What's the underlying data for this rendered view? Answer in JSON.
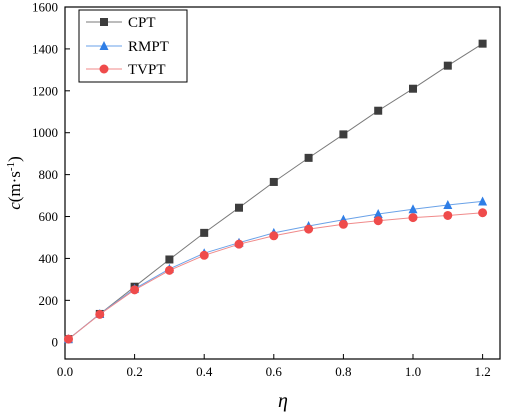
{
  "chart_data": {
    "type": "line",
    "xlabel": "η",
    "ylabel_main": "c",
    "ylabel_unit": "(m·s",
    "ylabel_sup": "-1",
    "ylabel_close": ")",
    "xlim": [
      0.0,
      1.25
    ],
    "ylim": [
      -80,
      1600
    ],
    "xticks": [
      0.0,
      0.2,
      0.4,
      0.6,
      0.8,
      1.0,
      1.2
    ],
    "yticks": [
      0,
      200,
      400,
      600,
      800,
      1000,
      1200,
      1400,
      1600
    ],
    "xtick_labels": [
      "0.0",
      "0.2",
      "0.4",
      "0.6",
      "0.8",
      "1.0",
      "1.2"
    ],
    "ytick_labels": [
      "0",
      "200",
      "400",
      "600",
      "800",
      "1000",
      "1200",
      "1400",
      "1600"
    ],
    "grid": false,
    "legend_position": "top-left",
    "x": [
      0.01,
      0.1,
      0.2,
      0.3,
      0.4,
      0.5,
      0.6,
      0.7,
      0.8,
      0.9,
      1.0,
      1.1,
      1.2
    ],
    "series": [
      {
        "name": "CPT",
        "marker": "square",
        "color": "#3d3d3d",
        "line_color": "#7a7a7a",
        "values": [
          15,
          135,
          265,
          395,
          522,
          642,
          765,
          880,
          992,
          1105,
          1210,
          1320,
          1425
        ]
      },
      {
        "name": "RMPT",
        "marker": "triangle",
        "color": "#2f7ee6",
        "line_color": "#6aa2e8",
        "values": [
          15,
          135,
          255,
          350,
          425,
          475,
          522,
          555,
          585,
          612,
          635,
          655,
          672
        ]
      },
      {
        "name": "TVPT",
        "marker": "circle",
        "color": "#ef4b4b",
        "line_color": "#f08a8a",
        "values": [
          15,
          133,
          250,
          343,
          415,
          468,
          508,
          540,
          563,
          580,
          595,
          605,
          618
        ]
      }
    ]
  }
}
